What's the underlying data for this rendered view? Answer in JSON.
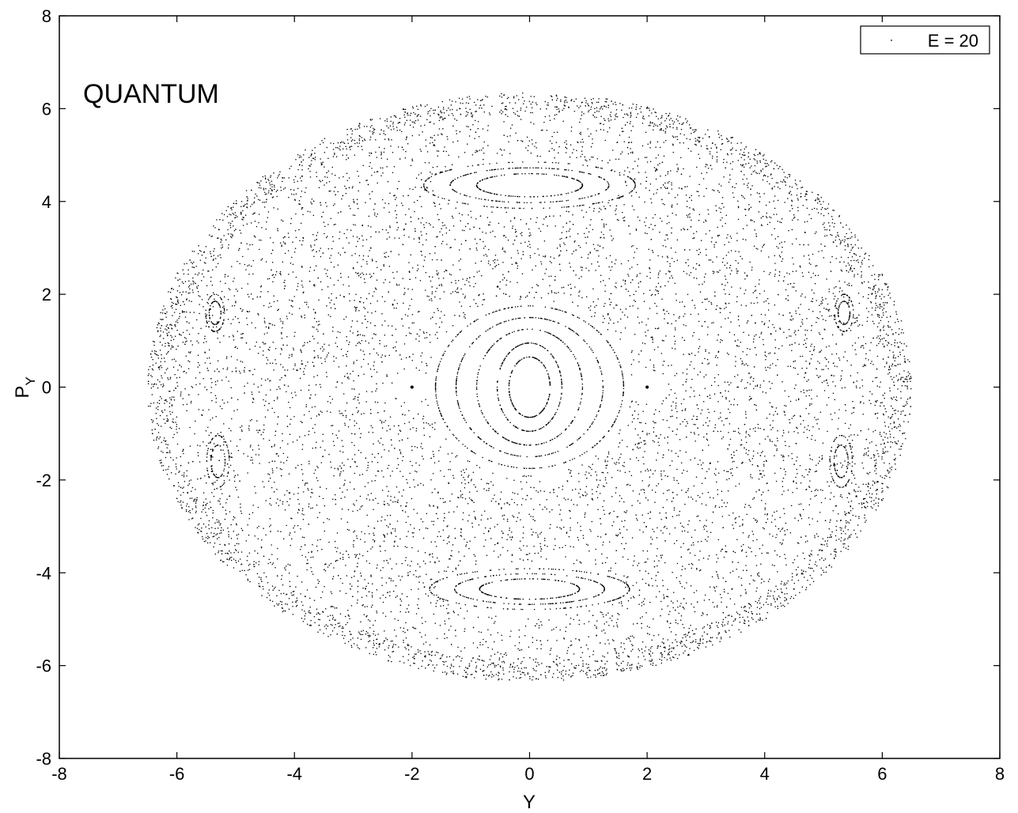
{
  "chart_data": {
    "type": "scatter",
    "annotation": "QUANTUM",
    "xlabel": "Y",
    "ylabel_main": "P",
    "ylabel_sub": "Y",
    "xlim": [
      -8,
      8
    ],
    "ylim": [
      -8,
      8
    ],
    "xticks": [
      "-8",
      "-6",
      "-4",
      "-2",
      "0",
      "2",
      "4",
      "6",
      "8"
    ],
    "yticks": [
      "-8",
      "-6",
      "-4",
      "-2",
      "0",
      "2",
      "4",
      "6",
      "8"
    ],
    "grid": false,
    "legend": {
      "position": "top-right",
      "label": "E = 20"
    },
    "marker": "point",
    "color": "#000000",
    "series": [
      {
        "name": "E = 20",
        "description_of_structure": {
          "outer_boundary": {
            "center": [
              0,
              0
            ],
            "y_extent": [
              -6.5,
              6.5
            ],
            "py_extent": [
              -6.35,
              6.35
            ]
          },
          "central_island_rings": [
            {
              "center": [
                0,
                0
              ],
              "ry": 0.35,
              "rpy": 0.65
            },
            {
              "center": [
                0,
                0
              ],
              "ry": 0.55,
              "rpy": 0.95
            },
            {
              "center": [
                0,
                0
              ],
              "ry": 0.9,
              "rpy": 1.25
            },
            {
              "center": [
                0,
                0
              ],
              "ry": 1.25,
              "rpy": 1.5
            },
            {
              "center": [
                0,
                0
              ],
              "ry": 1.6,
              "rpy": 1.75
            }
          ],
          "side_fixed_points": [
            [
              -2,
              0
            ],
            [
              2,
              0
            ]
          ],
          "upper_island": {
            "center": [
              0,
              4.35
            ],
            "ry": 0.9,
            "rpy": 0.25
          },
          "lower_island": {
            "center": [
              0,
              -4.35
            ],
            "ry": 0.85,
            "rpy": 0.22
          },
          "edge_islands": [
            {
              "center": [
                -5.3,
                -1.6
              ],
              "ry": 0.12,
              "rpy": 0.35
            },
            {
              "center": [
                5.3,
                -1.6
              ],
              "ry": 0.12,
              "rpy": 0.35
            },
            {
              "center": [
                -5.35,
                1.6
              ],
              "ry": 0.1,
              "rpy": 0.25
            },
            {
              "center": [
                5.35,
                1.6
              ],
              "ry": 0.1,
              "rpy": 0.25
            }
          ]
        }
      }
    ]
  }
}
